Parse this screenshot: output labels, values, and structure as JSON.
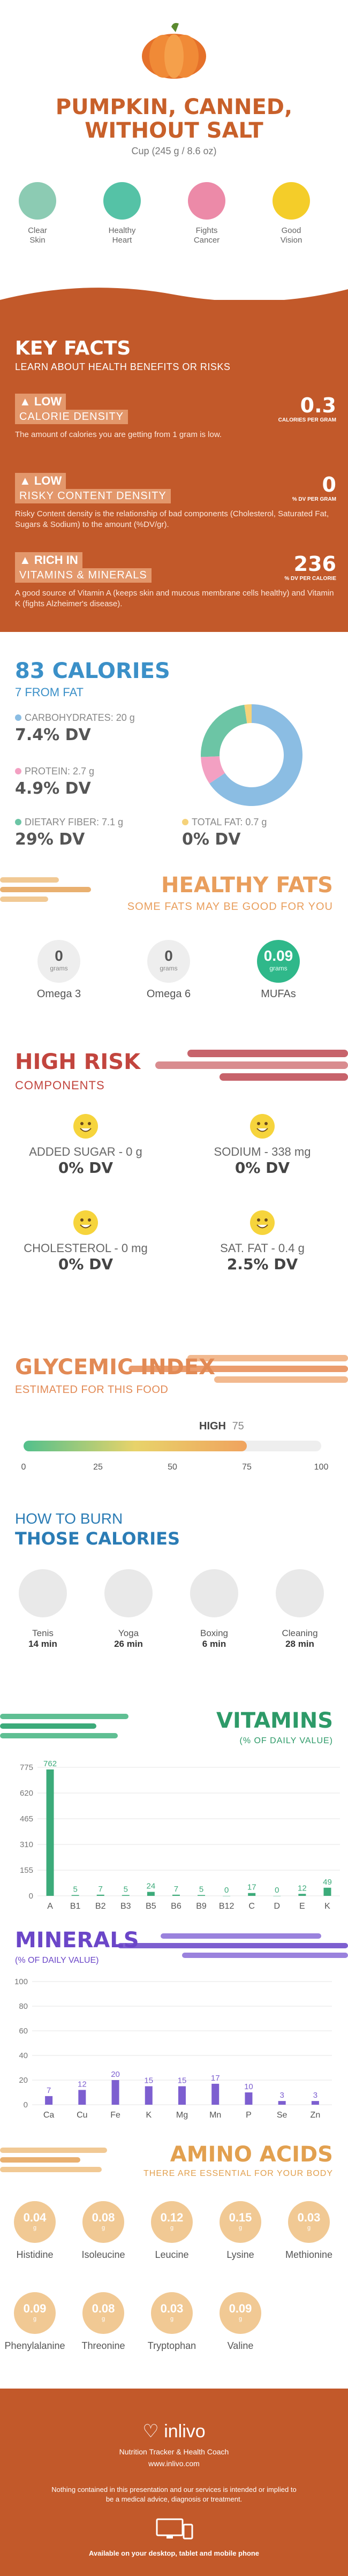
{
  "header": {
    "title_line1": "PUMPKIN, CANNED,",
    "title_line2": "WITHOUT SALT",
    "serving": "Cup (245 g / 8.6 oz)",
    "benefits": [
      {
        "line1": "Clear",
        "line2": "Skin",
        "icon": "face-icon",
        "color": "#8ccbb3"
      },
      {
        "line1": "Healthy",
        "line2": "Heart",
        "icon": "heart-monitor-icon",
        "color": "#55c2a6"
      },
      {
        "line1": "Fights",
        "line2": "Cancer",
        "icon": "ribbon-icon",
        "color": "#ec8aa8"
      },
      {
        "line1": "Good",
        "line2": "Vision",
        "icon": "eye-icon",
        "color": "#f4cd29"
      }
    ]
  },
  "key_facts": {
    "title": "KEY FACTS",
    "subtitle": "LEARN ABOUT HEALTH BENEFITS OR RISKS",
    "facts": [
      {
        "level": "LOW",
        "name": "CALORIE DENSITY",
        "value": "0.3",
        "unit": "CALORIES PER GRAM",
        "desc": "The amount of calories you are getting from 1 gram is low.",
        "icon": "flame-icon"
      },
      {
        "level": "LOW",
        "name": "RISKY CONTENT DENSITY",
        "value": "0",
        "unit": "% DV PER GRAM",
        "desc": "Risky Content density is the relationship of bad components (Cholesterol, Saturated Fat, Sugars & Sodium) to the amount (%DV/gr).",
        "icon": "warning-icon"
      },
      {
        "level": "RICH  IN",
        "name": "VITAMINS & MINERALS",
        "value": "236",
        "unit": "% DV PER CALORIE",
        "desc": "A good source of Vitamin A (keeps skin and mucous membrane cells healthy) and Vitamin K (fights Alzheimer's disease).",
        "icon": "leaf-icon"
      }
    ]
  },
  "calories": {
    "title": "83 CALORIES",
    "subtitle": "7 FROM FAT",
    "nutrients": [
      {
        "label": "CARBOHYDRATES: 20 g",
        "dv": "7.4% DV",
        "color": "#8bbde3"
      },
      {
        "label": "PROTEIN: 2.7 g",
        "dv": "4.9% DV",
        "color": "#f3a0c2"
      },
      {
        "label": "DIETARY FIBER: 7.1 g",
        "dv": "29% DV",
        "color": "#6cc5a5"
      },
      {
        "label": "TOTAL FAT: 0.7 g",
        "dv": "0% DV",
        "color": "#f5d27a"
      }
    ]
  },
  "chart_data": [
    {
      "type": "pie",
      "categories": [
        "Carbohydrates",
        "Protein",
        "Dietary Fiber",
        "Total Fat"
      ],
      "values": [
        20,
        2.7,
        7.1,
        0.7
      ],
      "colors": [
        "#8bbde3",
        "#f3a0c2",
        "#6cc5a5",
        "#f5d27a"
      ],
      "title": ""
    },
    {
      "type": "bar",
      "title": "VITAMINS",
      "subtitle": "(% OF DAILY VALUE)",
      "categories": [
        "A",
        "B1",
        "B2",
        "B3",
        "B5",
        "B6",
        "B9",
        "B12",
        "C",
        "D",
        "E",
        "K"
      ],
      "values": [
        762,
        5,
        7,
        5,
        24,
        7,
        5,
        0,
        17,
        0,
        12,
        49
      ],
      "yticks": [
        0,
        155,
        310,
        465,
        620,
        775
      ],
      "ylim": [
        0,
        775
      ],
      "color": "#3cab7a"
    },
    {
      "type": "bar",
      "title": "MINERALS",
      "subtitle": "(% OF DAILY VALUE)",
      "categories": [
        "Ca",
        "Cu",
        "Fe",
        "K",
        "Mg",
        "Mn",
        "P",
        "Se",
        "Zn"
      ],
      "values": [
        7,
        12,
        20,
        15,
        15,
        17,
        10,
        3,
        3
      ],
      "yticks": [
        0,
        20,
        40,
        60,
        80,
        100
      ],
      "ylim": [
        0,
        100
      ],
      "color": "#7d5fd0"
    }
  ],
  "healthy_fats": {
    "title": "HEALTHY FATS",
    "subtitle": "SOME FATS MAY BE GOOD FOR YOU",
    "unit": "grams",
    "items": [
      {
        "name": "Omega 3",
        "value": "0"
      },
      {
        "name": "Omega 6",
        "value": "0"
      },
      {
        "name": "MUFAs",
        "value": "0.09"
      }
    ]
  },
  "high_risk": {
    "title": "HIGH RISK",
    "subtitle": "COMPONENTS",
    "items": [
      {
        "label": "ADDED SUGAR - 0 g",
        "dv": "0% DV"
      },
      {
        "label": "SODIUM - 338 mg",
        "dv": "0% DV"
      },
      {
        "label": "CHOLESTEROL - 0 mg",
        "dv": "0% DV"
      },
      {
        "label": "SAT. FAT - 0.4 g",
        "dv": "2.5% DV"
      }
    ]
  },
  "glycemic": {
    "title": "GLYCEMIC INDEX",
    "subtitle": "ESTIMATED FOR THIS FOOD",
    "level": "HIGH",
    "value": 75,
    "value_label": "75",
    "ticks": [
      "0",
      "25",
      "50",
      "75",
      "100"
    ]
  },
  "burn": {
    "title1": "HOW TO BURN",
    "title2": "THOSE CALORIES",
    "activities": [
      {
        "name": "Tenis",
        "time": "14 min",
        "icon": "tennis-player-icon"
      },
      {
        "name": "Yoga",
        "time": "26 min",
        "icon": "yoga-icon"
      },
      {
        "name": "Boxing",
        "time": "6 min",
        "icon": "boxing-icon"
      },
      {
        "name": "Cleaning",
        "time": "28 min",
        "icon": "cleaning-icon"
      }
    ]
  },
  "vitamins": {
    "title": "VITAMINS",
    "subtitle": "(% OF DAILY VALUE)"
  },
  "minerals": {
    "title": "MINERALS",
    "subtitle": "(% OF DAILY VALUE)"
  },
  "amino": {
    "title": "AMINO ACIDS",
    "subtitle": "THERE ARE ESSENTIAL FOR YOUR BODY",
    "unit": "g",
    "items": [
      {
        "name": "Histidine",
        "value": "0.04"
      },
      {
        "name": "Isoleucine",
        "value": "0.08"
      },
      {
        "name": "Leucine",
        "value": "0.12"
      },
      {
        "name": "Lysine",
        "value": "0.15"
      },
      {
        "name": "Methionine",
        "value": "0.03"
      },
      {
        "name": "Phenylalanine",
        "value": "0.09"
      },
      {
        "name": "Threonine",
        "value": "0.08"
      },
      {
        "name": "Tryptophan",
        "value": "0.03"
      },
      {
        "name": "Valine",
        "value": "0.09"
      }
    ]
  },
  "footer": {
    "brand": "inlivo",
    "tagline": "Nutrition Tracker & Health Coach",
    "url": "www.inlivo.com",
    "disclaimer": "Nothing contained in this presentation and our services is intended or implied to be a medical advice, diagnosis or treatment.",
    "available": "Available on your desktop, tablet and mobile phone"
  }
}
